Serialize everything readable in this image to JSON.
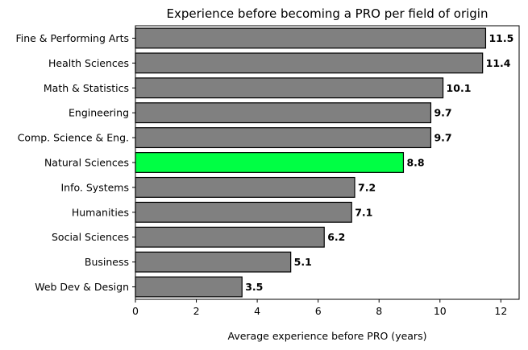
{
  "chart_data": {
    "type": "bar",
    "orientation": "horizontal",
    "title": "Experience before becoming a PRO per field of origin",
    "xlabel": "Average experience before PRO (years)",
    "ylabel": "",
    "xlim": [
      0,
      12.6
    ],
    "xticks": [
      0,
      2,
      4,
      6,
      8,
      10,
      12
    ],
    "grid": false,
    "legend": "none",
    "categories": [
      "Fine & Performing Arts",
      "Health Sciences",
      "Math & Statistics",
      "Engineering",
      "Comp. Science & Eng.",
      "Natural Sciences",
      "Info. Systems",
      "Humanities",
      "Social Sciences",
      "Business",
      "Web Dev & Design"
    ],
    "values": [
      11.5,
      11.4,
      10.1,
      9.7,
      9.7,
      8.8,
      7.2,
      7.1,
      6.2,
      5.1,
      3.5
    ],
    "value_labels": [
      "11.5",
      "11.4",
      "10.1",
      "9.7",
      "9.7",
      "8.8",
      "7.2",
      "7.1",
      "6.2",
      "5.1",
      "3.5"
    ],
    "highlight_category": "Natural Sciences",
    "colors": {
      "bar": "#808080",
      "highlight": "#00ff44",
      "edge": "#000000"
    }
  }
}
